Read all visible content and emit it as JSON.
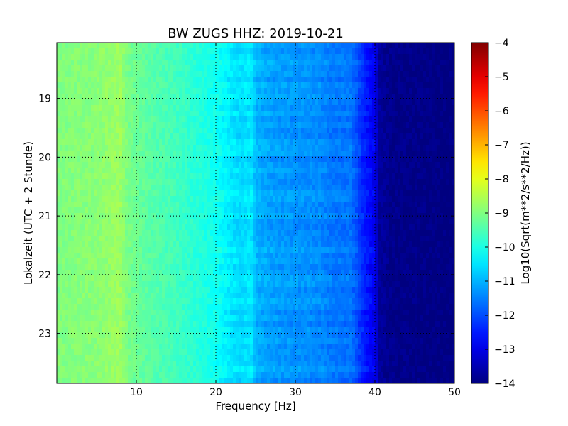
{
  "chart_data": {
    "type": "heatmap",
    "title": "BW ZUGS HHZ: 2019-10-21",
    "xlabel": "Frequency [Hz]",
    "ylabel": "Lokalzeit (UTC + 2 Stunde)",
    "xlim": [
      0,
      50
    ],
    "ylim": [
      18.05,
      23.85
    ],
    "x_ticks": [
      10,
      20,
      30,
      40,
      50
    ],
    "y_ticks": [
      19,
      20,
      21,
      22,
      23
    ],
    "grid": true,
    "colorbar": {
      "label": "Log10(Sqrt(m**2/s**2/Hz))",
      "range": [
        -14,
        -4
      ],
      "ticks": [
        -4,
        -5,
        -6,
        -7,
        -8,
        -9,
        -10,
        -11,
        -12,
        -13,
        -14
      ],
      "colormap": "jet"
    },
    "spectrum_profile": {
      "frequency_hz": [
        0,
        5,
        8,
        9,
        12,
        15,
        18,
        20,
        21.5,
        23,
        24.5,
        25,
        27,
        30,
        33,
        35,
        37,
        38.5,
        40,
        40.5,
        42,
        50
      ],
      "log10_amplitude": [
        -9.0,
        -8.9,
        -8.7,
        -9.1,
        -9.4,
        -9.6,
        -9.9,
        -10.1,
        -10.4,
        -10.6,
        -10.5,
        -11.0,
        -11.2,
        -11.3,
        -11.4,
        -11.6,
        -11.6,
        -12.4,
        -12.9,
        -13.7,
        -13.9,
        -14.0
      ]
    }
  }
}
